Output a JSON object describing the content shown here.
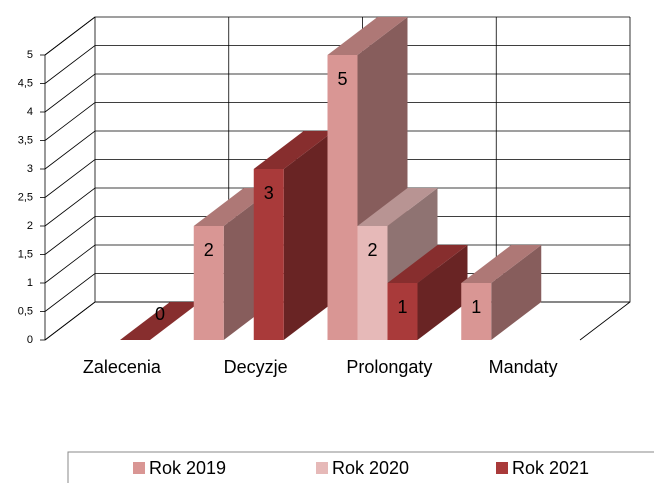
{
  "chart_data": {
    "type": "bar3d",
    "categories": [
      "Zalecenia",
      "Decyzje",
      "Prolongaty",
      "Mandaty"
    ],
    "series": [
      {
        "name": "Rok 2019",
        "color": "#d99694",
        "values": [
          null,
          2,
          5,
          1
        ]
      },
      {
        "name": "Rok 2020",
        "color": "#e6b9b8",
        "values": [
          null,
          null,
          2,
          null
        ]
      },
      {
        "name": "Rok 2021",
        "color": "#a93a3a",
        "values": [
          0,
          3,
          1,
          null
        ]
      }
    ],
    "ylim": [
      0,
      5
    ],
    "yticks": [
      0,
      {
        "value": 0.5,
        "label": "0,5"
      },
      1,
      {
        "value": 1.5,
        "label": "1,5"
      },
      2,
      {
        "value": 2.5,
        "label": "2,5"
      },
      3,
      {
        "value": 3.5,
        "label": "3,5"
      },
      4,
      {
        "value": 4.5,
        "label": "4,5"
      },
      5
    ],
    "grid": true
  }
}
